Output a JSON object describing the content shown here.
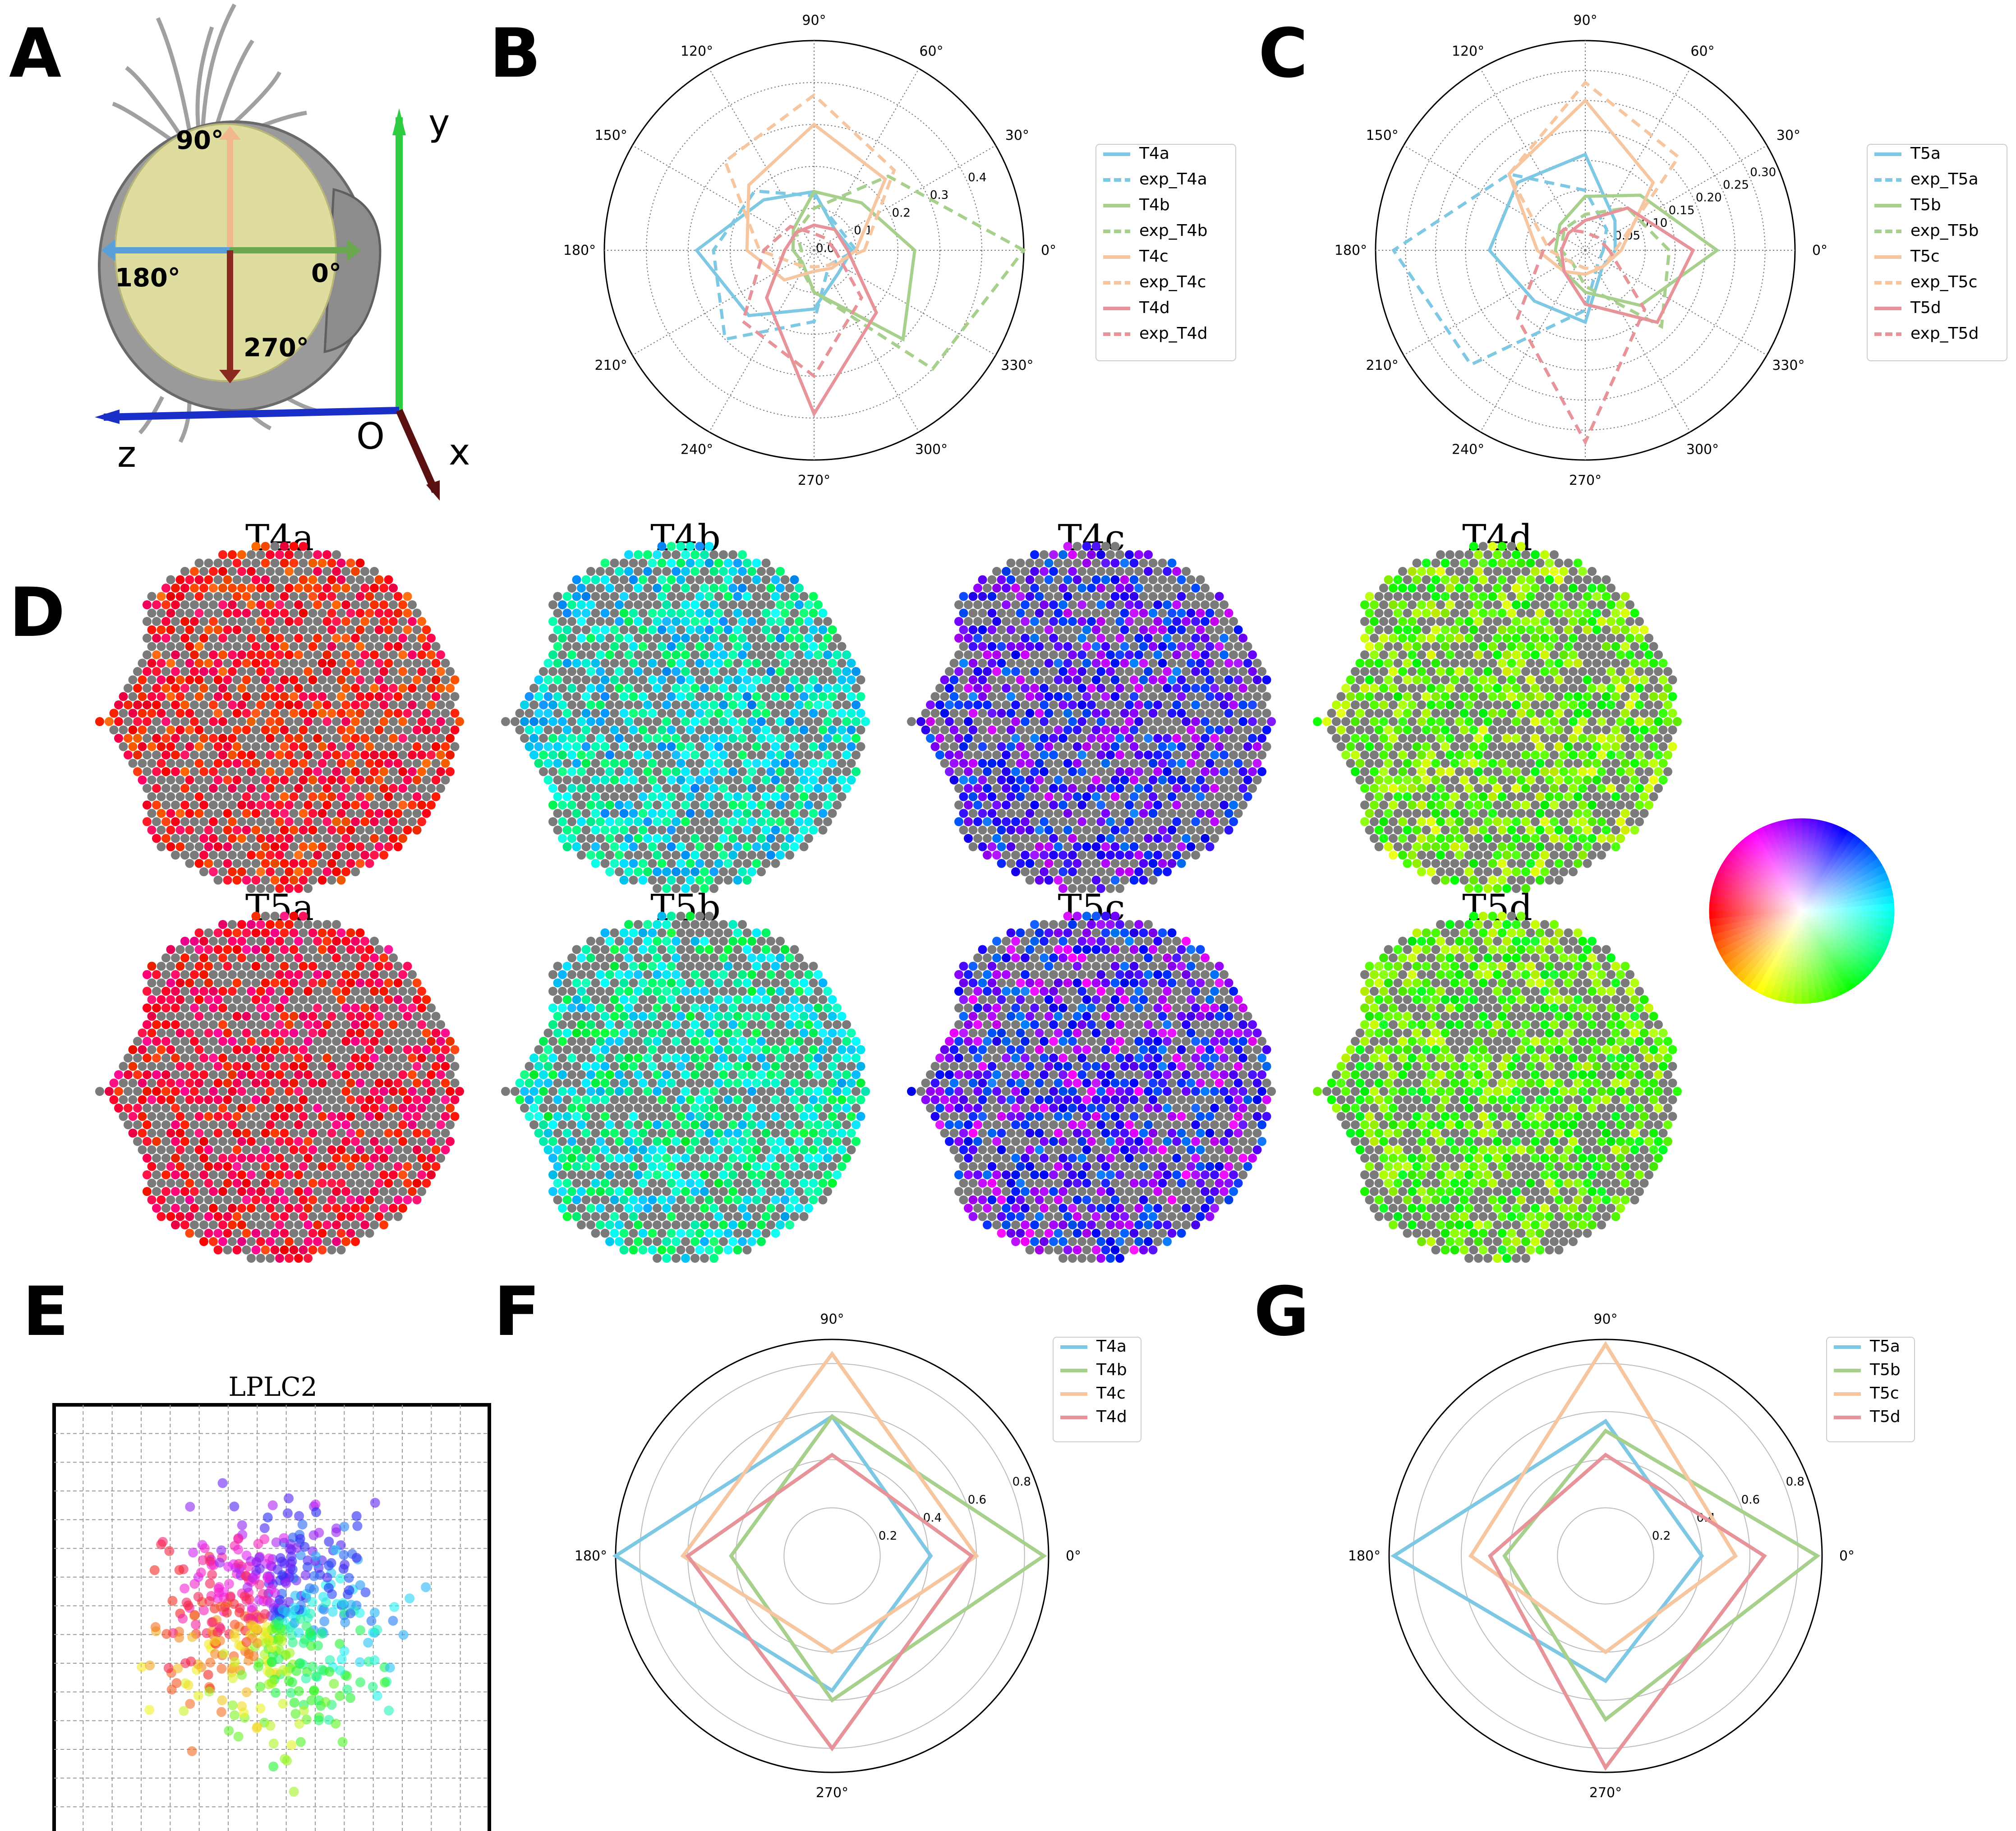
{
  "panels": {
    "A": {
      "letter": "A",
      "head_labels": {
        "up": "90°",
        "left": "180°",
        "right": "0°",
        "down": "270°"
      },
      "axes": {
        "y": "y",
        "z": "z",
        "x": "x",
        "origin": "O"
      },
      "colors": {
        "up": "#f2b88d",
        "left": "#5aa0d8",
        "right": "#6aa84f",
        "down": "#8a2a1f",
        "y_axis": "#2ecc40",
        "z_axis": "#1a2fc8",
        "x_axis": "#5a1010",
        "eye": "#dedc9e"
      }
    },
    "B": {
      "letter": "B"
    },
    "C": {
      "letter": "C"
    },
    "D": {
      "letter": "D",
      "titles": [
        "T4a",
        "T4b",
        "T4c",
        "T4d",
        "T5a",
        "T5b",
        "T5c",
        "T5d"
      ]
    },
    "E": {
      "letter": "E",
      "title": "LPLC2"
    },
    "F": {
      "letter": "F"
    },
    "G": {
      "letter": "G"
    }
  },
  "colors": {
    "a": "#7ec8e3",
    "b": "#a8d08d",
    "c": "#f5c6a0",
    "d": "#e6949a",
    "hex_gray": "#7a7a7a"
  },
  "chart_data": [
    {
      "panel": "B",
      "type": "radar",
      "angles": [
        0,
        45,
        90,
        135,
        180,
        225,
        270,
        315
      ],
      "angle_labels": [
        "0°",
        "30°",
        "60°",
        "90°",
        "120°",
        "150°",
        "180°",
        "210°",
        "240°",
        "270°",
        "300°",
        "330°"
      ],
      "r_ticks": [
        "0.0",
        "0.1",
        "0.2",
        "0.3",
        "0.4"
      ],
      "rmax": 0.5,
      "series": [
        {
          "name": "T4a",
          "color": "#7ec8e3",
          "dash": false,
          "values": [
            0.09,
            0.07,
            0.14,
            0.17,
            0.28,
            0.22,
            0.14,
            0.08
          ]
        },
        {
          "name": "exp_T4a",
          "color": "#7ec8e3",
          "dash": true,
          "values": [
            0.1,
            0.08,
            0.13,
            0.2,
            0.24,
            0.3,
            0.17,
            0.05
          ]
        },
        {
          "name": "T4b",
          "color": "#a8d08d",
          "dash": false,
          "values": [
            0.24,
            0.16,
            0.14,
            0.07,
            0.05,
            0.04,
            0.1,
            0.3
          ]
        },
        {
          "name": "exp_T4b",
          "color": "#a8d08d",
          "dash": true,
          "values": [
            0.5,
            0.25,
            0.1,
            0.06,
            0.03,
            0.05,
            0.1,
            0.4
          ]
        },
        {
          "name": "T4c",
          "color": "#f5c6a0",
          "dash": false,
          "values": [
            0.1,
            0.24,
            0.3,
            0.22,
            0.16,
            0.1,
            0.05,
            0.06
          ]
        },
        {
          "name": "exp_T4c",
          "color": "#f5c6a0",
          "dash": true,
          "values": [
            0.12,
            0.27,
            0.37,
            0.3,
            0.13,
            0.05,
            0.04,
            0.05
          ]
        },
        {
          "name": "T4d",
          "color": "#e6949a",
          "dash": false,
          "values": [
            0.08,
            0.07,
            0.06,
            0.06,
            0.07,
            0.16,
            0.39,
            0.21
          ]
        },
        {
          "name": "exp_T4d",
          "color": "#e6949a",
          "dash": true,
          "values": [
            0.05,
            0.04,
            0.04,
            0.08,
            0.12,
            0.24,
            0.3,
            0.16
          ]
        }
      ]
    },
    {
      "panel": "C",
      "type": "radar",
      "angles": [
        0,
        45,
        90,
        135,
        180,
        225,
        270,
        315
      ],
      "angle_labels": [
        "0°",
        "30°",
        "60°",
        "90°",
        "120°",
        "150°",
        "180°",
        "210°",
        "240°",
        "270°",
        "300°",
        "330°"
      ],
      "r_ticks": [
        "0.05",
        "0.10",
        "0.15",
        "0.20",
        "0.25",
        "0.30"
      ],
      "rmax": 0.35,
      "series": [
        {
          "name": "T5a",
          "color": "#7ec8e3",
          "dash": false,
          "values": [
            0.05,
            0.07,
            0.16,
            0.16,
            0.16,
            0.12,
            0.12,
            0.04
          ]
        },
        {
          "name": "exp_T5a",
          "color": "#7ec8e3",
          "dash": true,
          "values": [
            0.03,
            0.05,
            0.1,
            0.18,
            0.32,
            0.27,
            0.1,
            0.03
          ]
        },
        {
          "name": "T5b",
          "color": "#a8d08d",
          "dash": false,
          "values": [
            0.22,
            0.13,
            0.09,
            0.06,
            0.05,
            0.05,
            0.07,
            0.13
          ]
        },
        {
          "name": "exp_T5b",
          "color": "#a8d08d",
          "dash": true,
          "values": [
            0.14,
            0.1,
            0.06,
            0.05,
            0.04,
            0.03,
            0.06,
            0.18
          ]
        },
        {
          "name": "T5c",
          "color": "#f5c6a0",
          "dash": false,
          "values": [
            0.06,
            0.16,
            0.25,
            0.18,
            0.08,
            0.05,
            0.04,
            0.04
          ]
        },
        {
          "name": "exp_T5c",
          "color": "#f5c6a0",
          "dash": true,
          "values": [
            0.05,
            0.22,
            0.28,
            0.18,
            0.06,
            0.03,
            0.03,
            0.04
          ]
        },
        {
          "name": "T5d",
          "color": "#e6949a",
          "dash": false,
          "values": [
            0.18,
            0.1,
            0.05,
            0.04,
            0.04,
            0.05,
            0.09,
            0.17
          ]
        },
        {
          "name": "exp_T5d",
          "color": "#e6949a",
          "dash": true,
          "values": [
            0.04,
            0.03,
            0.03,
            0.05,
            0.07,
            0.16,
            0.32,
            0.14
          ]
        }
      ]
    },
    {
      "panel": "F",
      "type": "radar",
      "angles": [
        0,
        90,
        180,
        270
      ],
      "angle_labels": [
        "0°",
        "90°",
        "180°",
        "270°"
      ],
      "r_ticks": [
        "0.2",
        "0.4",
        "0.6",
        "0.8"
      ],
      "rmax": 0.9,
      "series": [
        {
          "name": "T4a",
          "color": "#7ec8e3",
          "values": [
            0.41,
            0.58,
            0.9,
            0.56
          ]
        },
        {
          "name": "T4b",
          "color": "#a8d08d",
          "values": [
            0.88,
            0.58,
            0.42,
            0.6
          ]
        },
        {
          "name": "T4c",
          "color": "#f5c6a0",
          "values": [
            0.6,
            0.84,
            0.62,
            0.4
          ]
        },
        {
          "name": "T4d",
          "color": "#e6949a",
          "values": [
            0.58,
            0.42,
            0.6,
            0.8
          ]
        }
      ]
    },
    {
      "panel": "G",
      "type": "radar",
      "angles": [
        0,
        90,
        180,
        270
      ],
      "angle_labels": [
        "0°",
        "90°",
        "180°",
        "270°"
      ],
      "r_ticks": [
        "0.2",
        "0.4",
        "0.6",
        "0.8"
      ],
      "rmax": 0.9,
      "series": [
        {
          "name": "T5a",
          "color": "#7ec8e3",
          "values": [
            0.4,
            0.56,
            0.88,
            0.52
          ]
        },
        {
          "name": "T5b",
          "color": "#a8d08d",
          "values": [
            0.88,
            0.52,
            0.42,
            0.68
          ]
        },
        {
          "name": "T5c",
          "color": "#f5c6a0",
          "values": [
            0.54,
            0.88,
            0.56,
            0.4
          ]
        },
        {
          "name": "T5d",
          "color": "#e6949a",
          "values": [
            0.66,
            0.42,
            0.48,
            0.88
          ]
        }
      ]
    },
    {
      "panel": "E",
      "type": "scatter",
      "points_summary": "LPLC2 receptive field points colored by direction hue",
      "x_range": [
        0,
        1
      ],
      "y_range": [
        0,
        1
      ]
    }
  ]
}
